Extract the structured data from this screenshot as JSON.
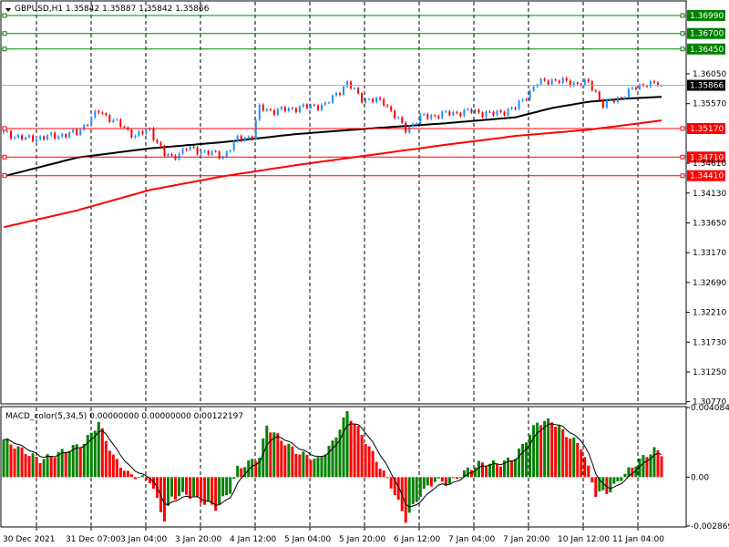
{
  "header": {
    "symbol_line": "GBPUSD,H1  1.35842 1.35887 1.35842 1.35866",
    "macd_line": "MACD_color(5,34,5) 0.00000000 0.00000000 0.00122197"
  },
  "colors": {
    "bull": "#1e90ff",
    "bear": "#ff0000",
    "ma_fast": "#000000",
    "ma_slow": "#ff0000",
    "hline_green": "#008000",
    "hline_red": "#ff0000",
    "macd_up": "#008000",
    "macd_down": "#ff0000",
    "signal": "#000000",
    "current_price_bg": "#000000",
    "grid": "#000000"
  },
  "chart_data": [
    {
      "type": "candlestick",
      "title": "GBPUSD,H1",
      "ohlc_last": {
        "open": 1.35842,
        "high": 1.35887,
        "low": 1.35842,
        "close": 1.35866
      },
      "ylim": [
        1.3075,
        1.3721
      ],
      "price_ticks": [
        "1.36050",
        "1.35570",
        "1.34610",
        "1.34130",
        "1.33650",
        "1.33170",
        "1.32690",
        "1.32210",
        "1.31730",
        "1.31250",
        "1.30770"
      ],
      "current_price": {
        "label": "1.35866",
        "value": 1.35866
      },
      "levels": [
        {
          "label": "1.36990",
          "value": 1.3699,
          "color": "green"
        },
        {
          "label": "1.36700",
          "value": 1.367,
          "color": "green"
        },
        {
          "label": "1.36450",
          "value": 1.3645,
          "color": "green"
        },
        {
          "label": "1.35170",
          "value": 1.3517,
          "color": "red"
        },
        {
          "label": "1.34710",
          "value": 1.3471,
          "color": "red"
        },
        {
          "label": "1.34410",
          "value": 1.3441,
          "color": "red"
        }
      ],
      "x_labels": [
        "30 Dec 2021",
        "31 Dec 07:00",
        "3 Jan 04:00",
        "3 Jan 20:00",
        "4 Jan 12:00",
        "5 Jan 04:00",
        "5 Jan 20:00",
        "6 Jan 12:00",
        "7 Jan 04:00",
        "7 Jan 20:00",
        "10 Jan 12:00",
        "11 Jan 04:00"
      ],
      "close_anchors": [
        [
          0,
          1.351
        ],
        [
          6,
          1.35
        ],
        [
          14,
          1.3505
        ],
        [
          20,
          1.351
        ],
        [
          26,
          1.3545
        ],
        [
          30,
          1.353
        ],
        [
          36,
          1.3505
        ],
        [
          40,
          1.3515
        ],
        [
          44,
          1.3475
        ],
        [
          46,
          1.347
        ],
        [
          50,
          1.3485
        ],
        [
          56,
          1.3478
        ],
        [
          60,
          1.3472
        ],
        [
          64,
          1.35
        ],
        [
          68,
          1.3505
        ],
        [
          70,
          1.355
        ],
        [
          74,
          1.3545
        ],
        [
          80,
          1.355
        ],
        [
          88,
          1.3555
        ],
        [
          94,
          1.359
        ],
        [
          98,
          1.3565
        ],
        [
          104,
          1.356
        ],
        [
          110,
          1.3515
        ],
        [
          114,
          1.3535
        ],
        [
          120,
          1.354
        ],
        [
          128,
          1.3545
        ],
        [
          134,
          1.354
        ],
        [
          140,
          1.355
        ],
        [
          146,
          1.359
        ],
        [
          150,
          1.3595
        ],
        [
          156,
          1.359
        ],
        [
          160,
          1.359
        ],
        [
          162,
          1.3575
        ],
        [
          164,
          1.3555
        ],
        [
          168,
          1.3565
        ],
        [
          172,
          1.358
        ],
        [
          176,
          1.359
        ],
        [
          180,
          1.3587
        ]
      ],
      "ma_fast": [
        [
          0,
          1.344
        ],
        [
          20,
          1.347
        ],
        [
          40,
          1.3485
        ],
        [
          60,
          1.3495
        ],
        [
          80,
          1.3508
        ],
        [
          100,
          1.3517
        ],
        [
          120,
          1.3525
        ],
        [
          140,
          1.3535
        ],
        [
          150,
          1.355
        ],
        [
          160,
          1.356
        ],
        [
          170,
          1.3565
        ],
        [
          180,
          1.3568
        ]
      ],
      "ma_slow": [
        [
          0,
          1.3358
        ],
        [
          20,
          1.3385
        ],
        [
          40,
          1.3418
        ],
        [
          60,
          1.344
        ],
        [
          80,
          1.3458
        ],
        [
          100,
          1.3474
        ],
        [
          120,
          1.349
        ],
        [
          140,
          1.3505
        ],
        [
          160,
          1.3515
        ],
        [
          180,
          1.353
        ]
      ]
    },
    {
      "type": "bar",
      "title": "MACD_color(5,34,5)",
      "ylim": [
        -0.002869,
        0.004084
      ],
      "ticks": [
        "0.0040842",
        "0.00",
        "-0.002869"
      ],
      "hist_anchors": [
        [
          0,
          0.0022
        ],
        [
          10,
          0.001
        ],
        [
          16,
          0.0015
        ],
        [
          22,
          0.002
        ],
        [
          26,
          0.0032
        ],
        [
          30,
          0.0012
        ],
        [
          34,
          0.0002
        ],
        [
          40,
          -0.0002
        ],
        [
          44,
          -0.0025
        ],
        [
          46,
          -0.0012
        ],
        [
          50,
          -0.001
        ],
        [
          58,
          -0.0018
        ],
        [
          62,
          -0.0008
        ],
        [
          64,
          0.0005
        ],
        [
          70,
          0.0012
        ],
        [
          72,
          0.003
        ],
        [
          76,
          0.0022
        ],
        [
          80,
          0.0015
        ],
        [
          86,
          0.001
        ],
        [
          90,
          0.002
        ],
        [
          94,
          0.0038
        ],
        [
          98,
          0.0025
        ],
        [
          102,
          0.001
        ],
        [
          106,
          -0.0005
        ],
        [
          110,
          -0.0025
        ],
        [
          114,
          -0.001
        ],
        [
          118,
          -0.0002
        ],
        [
          122,
          -0.0004
        ],
        [
          126,
          0.0003
        ],
        [
          130,
          0.0008
        ],
        [
          136,
          0.0008
        ],
        [
          140,
          0.0012
        ],
        [
          146,
          0.0032
        ],
        [
          150,
          0.0033
        ],
        [
          154,
          0.0025
        ],
        [
          158,
          0.0018
        ],
        [
          160,
          0.0005
        ],
        [
          162,
          -0.001
        ],
        [
          166,
          -0.0008
        ],
        [
          170,
          0.0002
        ],
        [
          174,
          0.001
        ],
        [
          178,
          0.0016
        ],
        [
          180,
          0.0014
        ]
      ]
    }
  ]
}
